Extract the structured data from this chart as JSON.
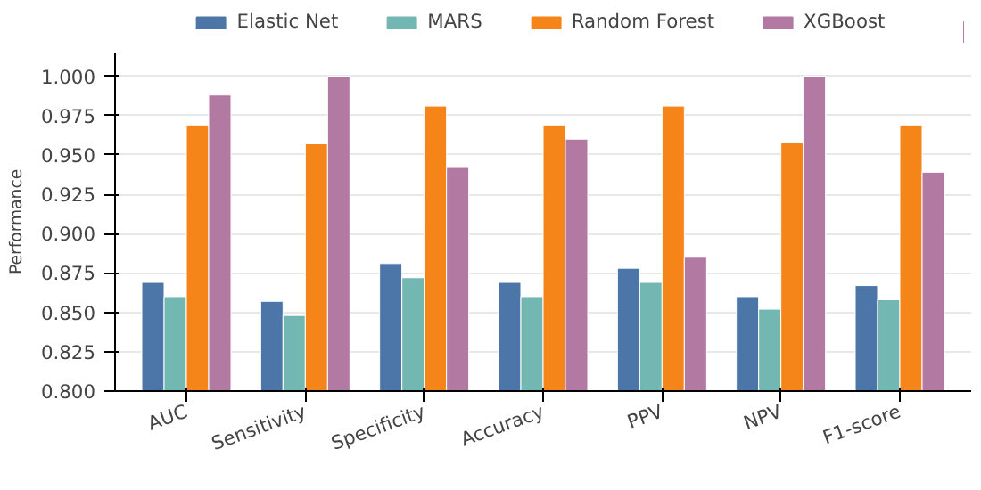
{
  "chart_data": {
    "type": "bar",
    "ylabel": "Performance",
    "categories": [
      "AUC",
      "Sensitivity",
      "Specificity",
      "Accuracy",
      "PPV",
      "NPV",
      "F1-score"
    ],
    "series": [
      {
        "name": "Elastic Net",
        "color": "#4c76a8",
        "values": [
          0.869,
          0.857,
          0.881,
          0.869,
          0.878,
          0.86,
          0.867
        ]
      },
      {
        "name": "MARS",
        "color": "#72b7b2",
        "values": [
          0.86,
          0.848,
          0.872,
          0.86,
          0.869,
          0.852,
          0.858
        ]
      },
      {
        "name": "Random Forest",
        "color": "#f58518",
        "values": [
          0.969,
          0.957,
          0.981,
          0.969,
          0.981,
          0.958,
          0.969
        ]
      },
      {
        "name": "XGBoost",
        "color": "#b279a2",
        "values": [
          0.988,
          1.0,
          0.942,
          0.96,
          0.885,
          1.0,
          0.939
        ]
      }
    ],
    "ylim": [
      0.8,
      1.015
    ],
    "yticks": [
      {
        "value": 0.8,
        "label": "0.800"
      },
      {
        "value": 0.825,
        "label": "0.825"
      },
      {
        "value": 0.85,
        "label": "0.850"
      },
      {
        "value": 0.875,
        "label": "0.875"
      },
      {
        "value": 0.9,
        "label": "0.900"
      },
      {
        "value": 0.925,
        "label": "0.925"
      },
      {
        "value": 0.95,
        "label": "0.950"
      },
      {
        "value": 0.975,
        "label": "0.975"
      },
      {
        "value": 1.0,
        "label": "1.000"
      }
    ],
    "grid": "y",
    "legend": "top"
  }
}
